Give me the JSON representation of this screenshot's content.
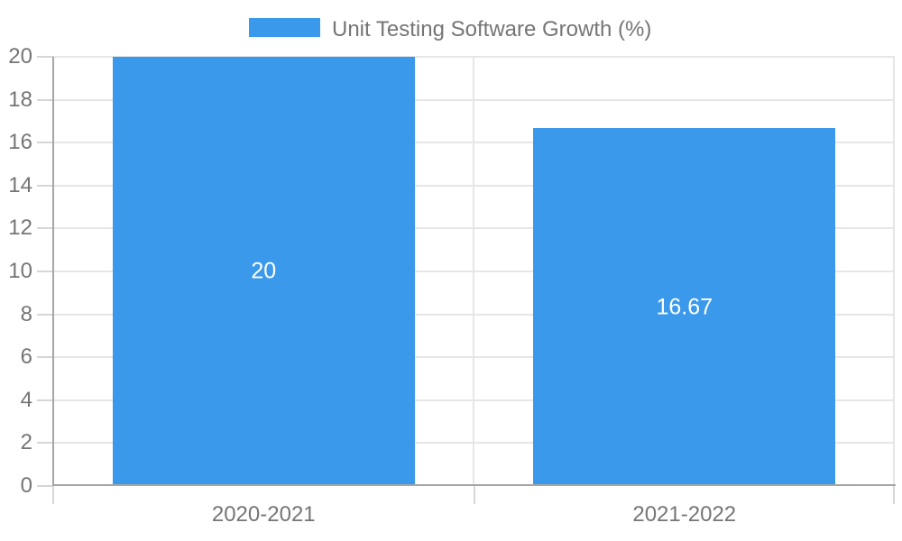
{
  "chart_data": {
    "type": "bar",
    "legend_label": "Unit Testing Software Growth (%)",
    "legend_position": "top",
    "categories": [
      "2020-2021",
      "2021-2022"
    ],
    "series": [
      {
        "name": "Unit Testing Software Growth (%)",
        "values": [
          20,
          16.67
        ]
      }
    ],
    "value_labels": [
      "20",
      "16.67"
    ],
    "xlabel": "",
    "ylabel": "",
    "ylim": [
      0,
      20
    ],
    "ytick_step": 2,
    "ytick_labels": [
      "0",
      "2",
      "4",
      "6",
      "8",
      "10",
      "12",
      "14",
      "16",
      "18",
      "20"
    ],
    "grid": true,
    "colors": {
      "bar": "#3b99ec",
      "grid": "#e6e6e6",
      "axis": "#a6a6a6",
      "tick": "#d6d6d6",
      "axis_text": "#757575",
      "value_text": "#ffffff",
      "background": "#ffffff"
    }
  }
}
